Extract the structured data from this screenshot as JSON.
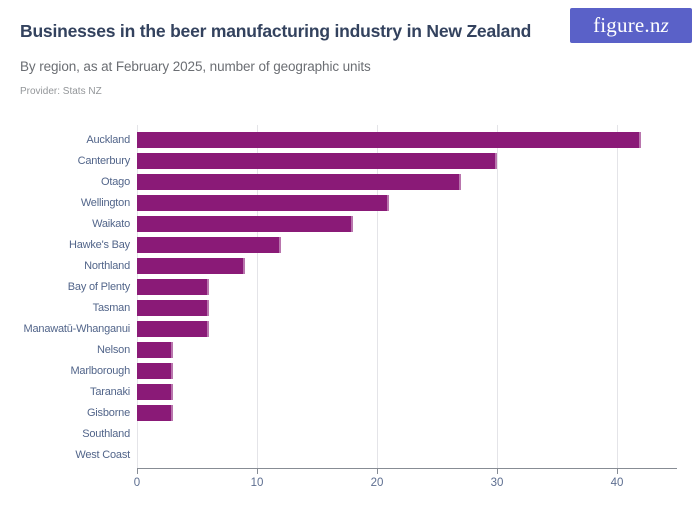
{
  "header": {
    "title": "Businesses in the beer manufacturing industry in New Zealand",
    "subtitle": "By region, as at February 2025, number of geographic units",
    "provider": "Provider: Stats NZ",
    "logo_main": "figure.n",
    "logo_accent": "z"
  },
  "colors": {
    "bar": "#8a1a77",
    "logo_background": "#5a61c8",
    "title_text": "#33425e",
    "subtitle_text": "#6b6e73",
    "provider_text": "#939699",
    "category_label_text": "#52658a",
    "axis_label_text": "#5d6e90",
    "gridline": "#e4e4e8",
    "axis_line": "#878c94"
  },
  "chart_data": {
    "type": "bar",
    "orientation": "horizontal",
    "title": "Businesses in the beer manufacturing industry in New Zealand",
    "subtitle": "By region, as at February 2025, number of geographic units",
    "provider": "Provider: Stats NZ",
    "unit": "number of geographic units",
    "categories": [
      "Auckland",
      "Canterbury",
      "Otago",
      "Wellington",
      "Waikato",
      "Hawke's Bay",
      "Northland",
      "Bay of Plenty",
      "Tasman",
      "Manawatū-Whanganui",
      "Nelson",
      "Marlborough",
      "Taranaki",
      "Gisborne",
      "Southland",
      "West Coast"
    ],
    "values": [
      42,
      30,
      27,
      21,
      18,
      12,
      9,
      6,
      6,
      6,
      3,
      3,
      3,
      3,
      0,
      0
    ],
    "xlabel": "",
    "ylabel": "",
    "xlim": [
      0,
      45
    ],
    "xticks": [
      0,
      10,
      20,
      30,
      40
    ],
    "grid": true,
    "legend": false
  }
}
